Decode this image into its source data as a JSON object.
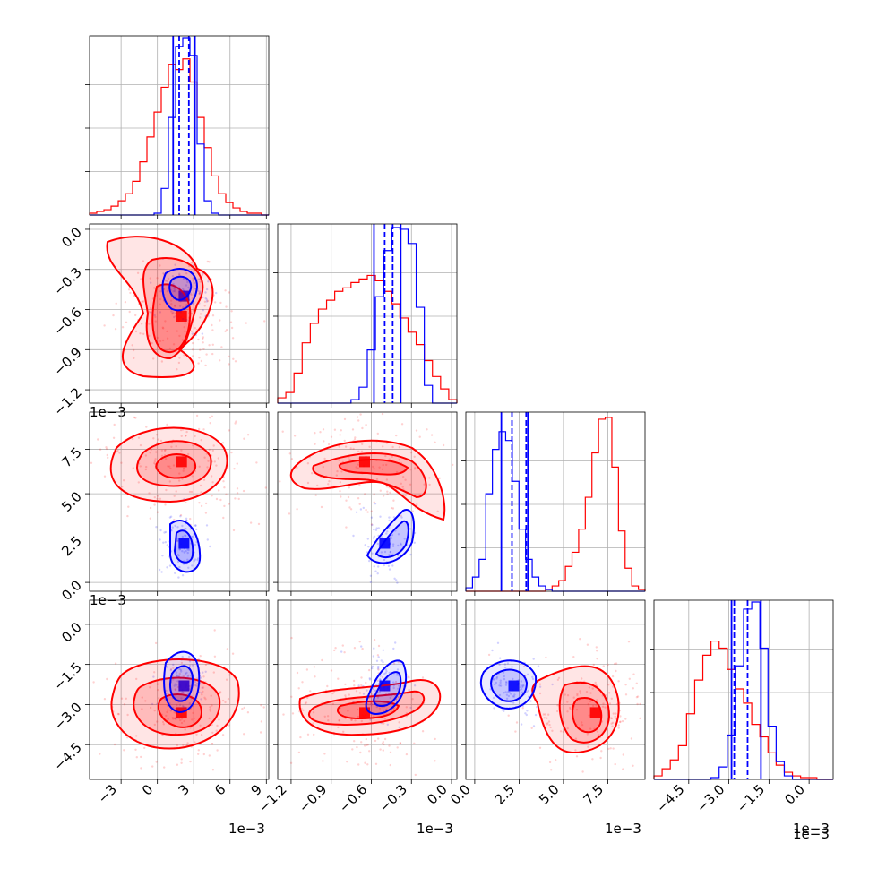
{
  "chart_data": {
    "type": "corner",
    "grid": true,
    "axis_offset_label": "1e−3",
    "parameters": [
      {
        "ticks": [
          -3,
          0,
          3,
          6,
          9
        ],
        "tick_labels": [
          "−3",
          "0",
          "3",
          "6",
          "9"
        ],
        "range": [
          -5.6,
          9.2
        ]
      },
      {
        "ticks": [
          -1.2,
          -0.9,
          -0.6,
          -0.3,
          0.0
        ],
        "tick_labels": [
          "−1.2",
          "−0.9",
          "−0.6",
          "−0.3",
          "0.0"
        ],
        "range": [
          -1.3,
          0.04
        ]
      },
      {
        "ticks": [
          0.0,
          2.5,
          5.0,
          7.5
        ],
        "tick_labels": [
          "0.0",
          "2.5",
          "5.0",
          "7.5"
        ],
        "range": [
          -0.5,
          9.6
        ]
      },
      {
        "ticks": [
          -4.5,
          -3.0,
          -1.5,
          0.0
        ],
        "tick_labels": [
          "−4.5",
          "−3.0",
          "−1.5",
          "0.0"
        ],
        "range": [
          -5.8,
          0.9
        ]
      }
    ],
    "series": [
      {
        "color": "#ff0000",
        "means": [
          2.0,
          -0.65,
          6.8,
          -3.3
        ],
        "quantiles": []
      },
      {
        "color": "#0000ff",
        "means": [
          2.2,
          -0.5,
          2.2,
          -2.3
        ],
        "quantiles": [
          [
            1.3,
            1.8,
            2.6,
            3.1
          ],
          [
            -0.58,
            -0.5,
            -0.44,
            -0.38
          ],
          [
            1.5,
            2.1,
            2.9,
            3.0
          ],
          [
            -2.9,
            -2.8,
            -2.3,
            -1.8
          ]
        ]
      }
    ],
    "histograms": [
      {
        "edges": [
          -5.6,
          9.2
        ],
        "red": [
          0.01,
          0.02,
          0.03,
          0.05,
          0.08,
          0.12,
          0.19,
          0.3,
          0.44,
          0.58,
          0.72,
          0.85,
          0.82,
          0.88,
          0.75,
          0.55,
          0.38,
          0.22,
          0.12,
          0.07,
          0.04,
          0.02,
          0.01,
          0.01,
          0.0
        ],
        "blue": [
          0,
          0,
          0,
          0,
          0,
          0,
          0,
          0,
          0,
          0.01,
          0.15,
          0.55,
          0.95,
          1.0,
          0.9,
          0.4,
          0.08,
          0.01,
          0,
          0,
          0,
          0,
          0,
          0,
          0
        ]
      },
      {
        "edges": [
          -1.3,
          0.04
        ],
        "red": [
          0.03,
          0.06,
          0.17,
          0.34,
          0.45,
          0.53,
          0.58,
          0.63,
          0.65,
          0.68,
          0.7,
          0.72,
          0.69,
          0.63,
          0.56,
          0.48,
          0.4,
          0.33,
          0.24,
          0.15,
          0.08,
          0.02
        ],
        "blue": [
          0,
          0,
          0,
          0,
          0,
          0,
          0,
          0,
          0,
          0.02,
          0.09,
          0.3,
          0.6,
          0.86,
          0.99,
          0.98,
          0.9,
          0.54,
          0.1,
          0,
          0,
          0
        ]
      },
      {
        "edges": [
          -0.5,
          9.6
        ],
        "red": [
          0,
          0,
          0,
          0,
          0,
          0,
          0,
          0,
          0,
          0,
          0,
          0,
          0.01,
          0.03,
          0.06,
          0.14,
          0.22,
          0.35,
          0.53,
          0.78,
          0.97,
          0.98,
          0.7,
          0.34,
          0.13,
          0.03,
          0.01
        ],
        "blue": [
          0.02,
          0.08,
          0.18,
          0.55,
          0.8,
          0.9,
          0.85,
          0.62,
          0.35,
          0.18,
          0.08,
          0.03,
          0.01,
          0,
          0,
          0,
          0,
          0,
          0,
          0,
          0,
          0,
          0,
          0,
          0,
          0,
          0
        ]
      },
      {
        "edges": [
          -5.8,
          0.9
        ],
        "red": [
          0.02,
          0.06,
          0.11,
          0.19,
          0.37,
          0.56,
          0.7,
          0.78,
          0.74,
          0.62,
          0.51,
          0.43,
          0.31,
          0.24,
          0.15,
          0.08,
          0.04,
          0.02,
          0.01,
          0.01,
          0.0,
          0.0
        ],
        "blue": [
          0,
          0,
          0,
          0,
          0,
          0,
          0,
          0.01,
          0.07,
          0.25,
          0.64,
          0.96,
          1.0,
          0.74,
          0.3,
          0.1,
          0.02,
          0,
          0,
          0,
          0,
          0
        ]
      }
    ]
  }
}
